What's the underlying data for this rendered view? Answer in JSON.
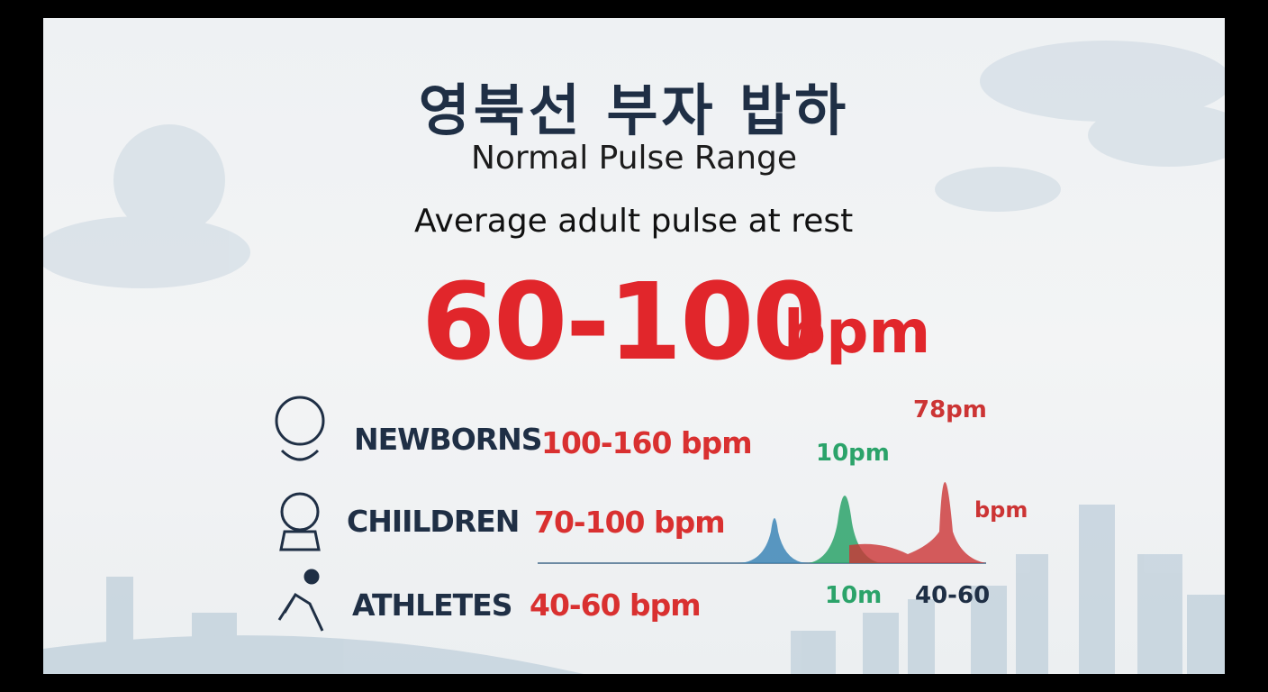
{
  "header": {
    "title": "영북선 부자 밥하",
    "subtitle": "Normal Pulse Range"
  },
  "highlight": {
    "label": "Average adult pulse at rest",
    "range": "60-100",
    "unit": "bpm"
  },
  "groups": [
    {
      "name": "NEWBORNS",
      "range": "100-160 bpm"
    },
    {
      "name": "CHIILDREN",
      "range": "70-100 bpm"
    },
    {
      "name": "ATHLETES",
      "range": "40-60 bpm"
    }
  ],
  "graphic": {
    "peak_labels": [
      "10pm",
      "78pm",
      "bpm"
    ],
    "axis_labels": [
      "10m",
      "40-60"
    ]
  }
}
